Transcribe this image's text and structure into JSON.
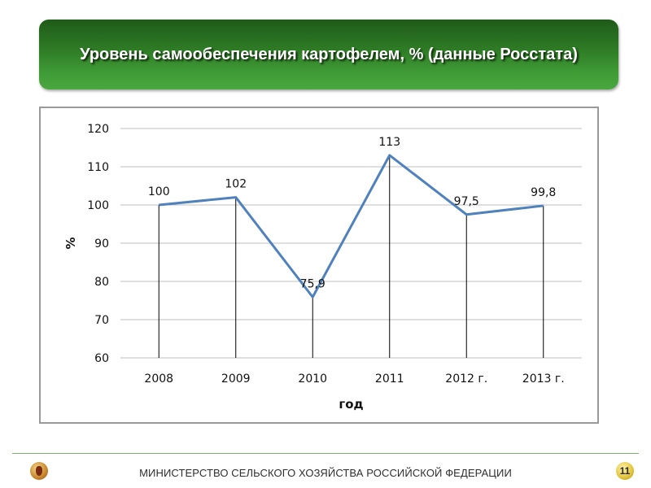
{
  "header": {
    "title": "Уровень самообеспечения картофелем, % (данные Росстата)"
  },
  "footer": {
    "ministry": "МИНИСТЕРСТВО СЕЛЬСКОГО ХОЗЯЙСТВА РОССИЙСКОЙ ФЕДЕРАЦИИ",
    "page_number": "11",
    "emblem_icon": "ministry-emblem-icon"
  },
  "colors": {
    "banner": "#2f7d26",
    "series_line": "#4f81bd",
    "gridline": "#bfbfbf"
  },
  "chart_data": {
    "type": "line",
    "title": "",
    "xlabel": "год",
    "ylabel": "%",
    "categories": [
      "2008",
      "2009",
      "2010",
      "2011",
      "2012 г.",
      "2013 г."
    ],
    "series": [
      {
        "values": [
          100,
          102,
          75.9,
          113,
          97.5,
          99.8
        ],
        "labels": [
          "100",
          "102",
          "75,9",
          "113",
          "97,5",
          "99,8"
        ]
      }
    ],
    "ylim": [
      60,
      120
    ],
    "yticks": [
      60,
      70,
      80,
      90,
      100,
      110,
      120
    ],
    "grid": true,
    "drop_lines": true,
    "legend": "none"
  }
}
